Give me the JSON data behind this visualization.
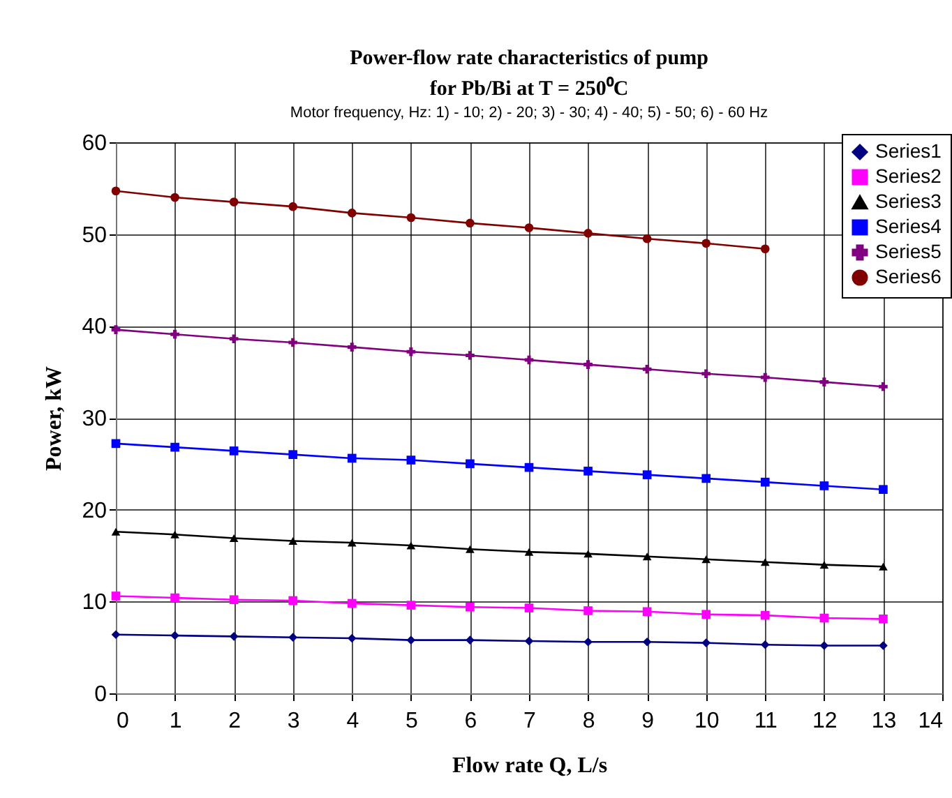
{
  "chart_data": {
    "type": "line",
    "title": "Power-flow rate characteristics of  pump\nfor Pb/Bi at T = 250⁰C",
    "subtitle": "Motor frequency, Hz: 1) - 10; 2) - 20; 3) - 30; 4) - 40; 5) - 50; 6) - 60 Hz",
    "xlabel": "Flow rate Q, L/s",
    "ylabel": "Power, kW",
    "x": [
      0,
      1,
      2,
      3,
      4,
      5,
      6,
      7,
      8,
      9,
      10,
      11,
      12,
      13
    ],
    "series": [
      {
        "name": "Series1",
        "color": "#000080",
        "marker": "diamond",
        "values": [
          6.4,
          6.3,
          6.2,
          6.1,
          6.0,
          5.8,
          5.8,
          5.7,
          5.6,
          5.6,
          5.5,
          5.3,
          5.2,
          5.2
        ]
      },
      {
        "name": "Series2",
        "color": "#ff00ff",
        "marker": "square",
        "values": [
          10.6,
          10.4,
          10.2,
          10.1,
          9.8,
          9.6,
          9.4,
          9.3,
          9.0,
          8.9,
          8.6,
          8.5,
          8.2,
          8.1
        ]
      },
      {
        "name": "Series3",
        "color": "#000000",
        "marker": "triangle",
        "values": [
          17.6,
          17.3,
          16.9,
          16.6,
          16.4,
          16.1,
          15.7,
          15.4,
          15.2,
          14.9,
          14.6,
          14.3,
          14.0,
          13.8
        ]
      },
      {
        "name": "Series4",
        "color": "#0000ff",
        "marker": "square",
        "values": [
          27.2,
          26.8,
          26.4,
          26.0,
          25.6,
          25.4,
          25.0,
          24.6,
          24.2,
          23.8,
          23.4,
          23.0,
          22.6,
          22.2
        ]
      },
      {
        "name": "Series5",
        "color": "#800080",
        "marker": "cross",
        "values": [
          39.6,
          39.1,
          38.6,
          38.2,
          37.7,
          37.2,
          36.8,
          36.3,
          35.8,
          35.3,
          34.8,
          34.4,
          33.9,
          33.4
        ]
      },
      {
        "name": "Series6",
        "color": "#800000",
        "marker": "circle",
        "values": [
          54.7,
          54.0,
          53.5,
          53.0,
          52.3,
          51.8,
          51.2,
          50.7,
          50.1,
          49.5,
          49.0,
          48.4,
          null,
          null
        ]
      }
    ],
    "xlim": [
      0,
      14
    ],
    "xticks": [
      0,
      1,
      2,
      3,
      4,
      5,
      6,
      7,
      8,
      9,
      10,
      11,
      12,
      13,
      14
    ],
    "ylim": [
      0,
      60
    ],
    "yticks": [
      0,
      10,
      20,
      30,
      40,
      50,
      60
    ],
    "grid": true,
    "legend": "top right",
    "line_style": "solid"
  }
}
